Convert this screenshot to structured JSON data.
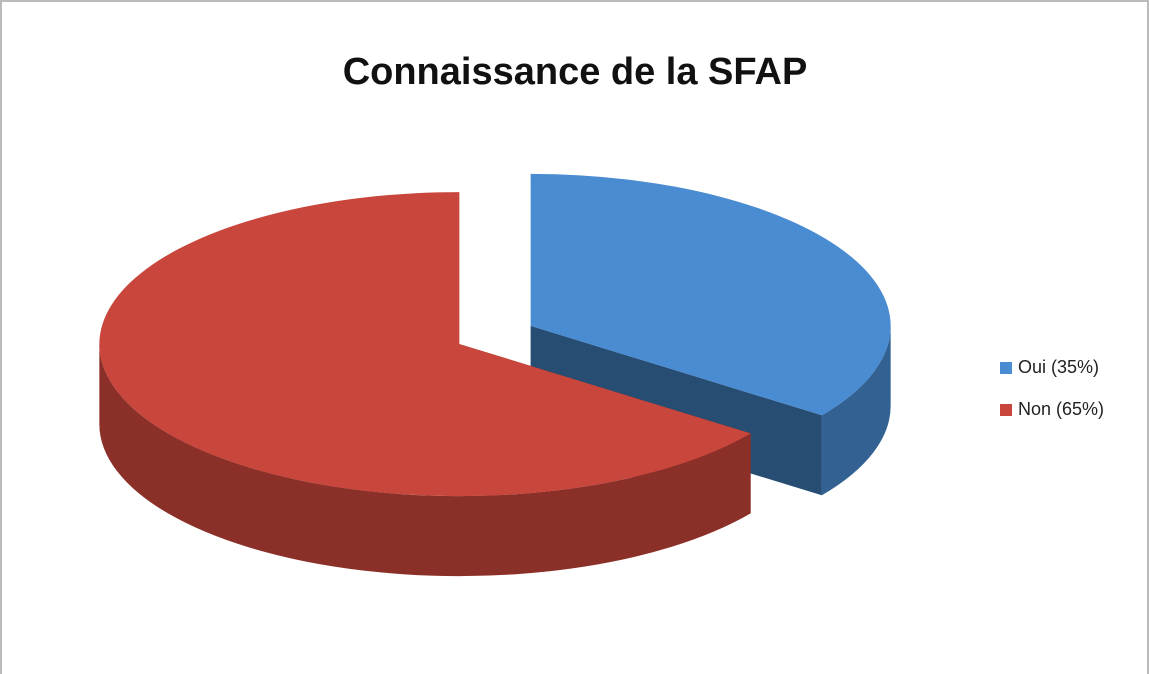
{
  "chart_data": {
    "type": "pie",
    "title": "Connaissance de la SFAP",
    "categories": [
      "Oui (35%)",
      "Non (65%)"
    ],
    "values": [
      35,
      65
    ],
    "colors": [
      "#4a8cd2",
      "#c8463b"
    ],
    "legend": "right"
  }
}
